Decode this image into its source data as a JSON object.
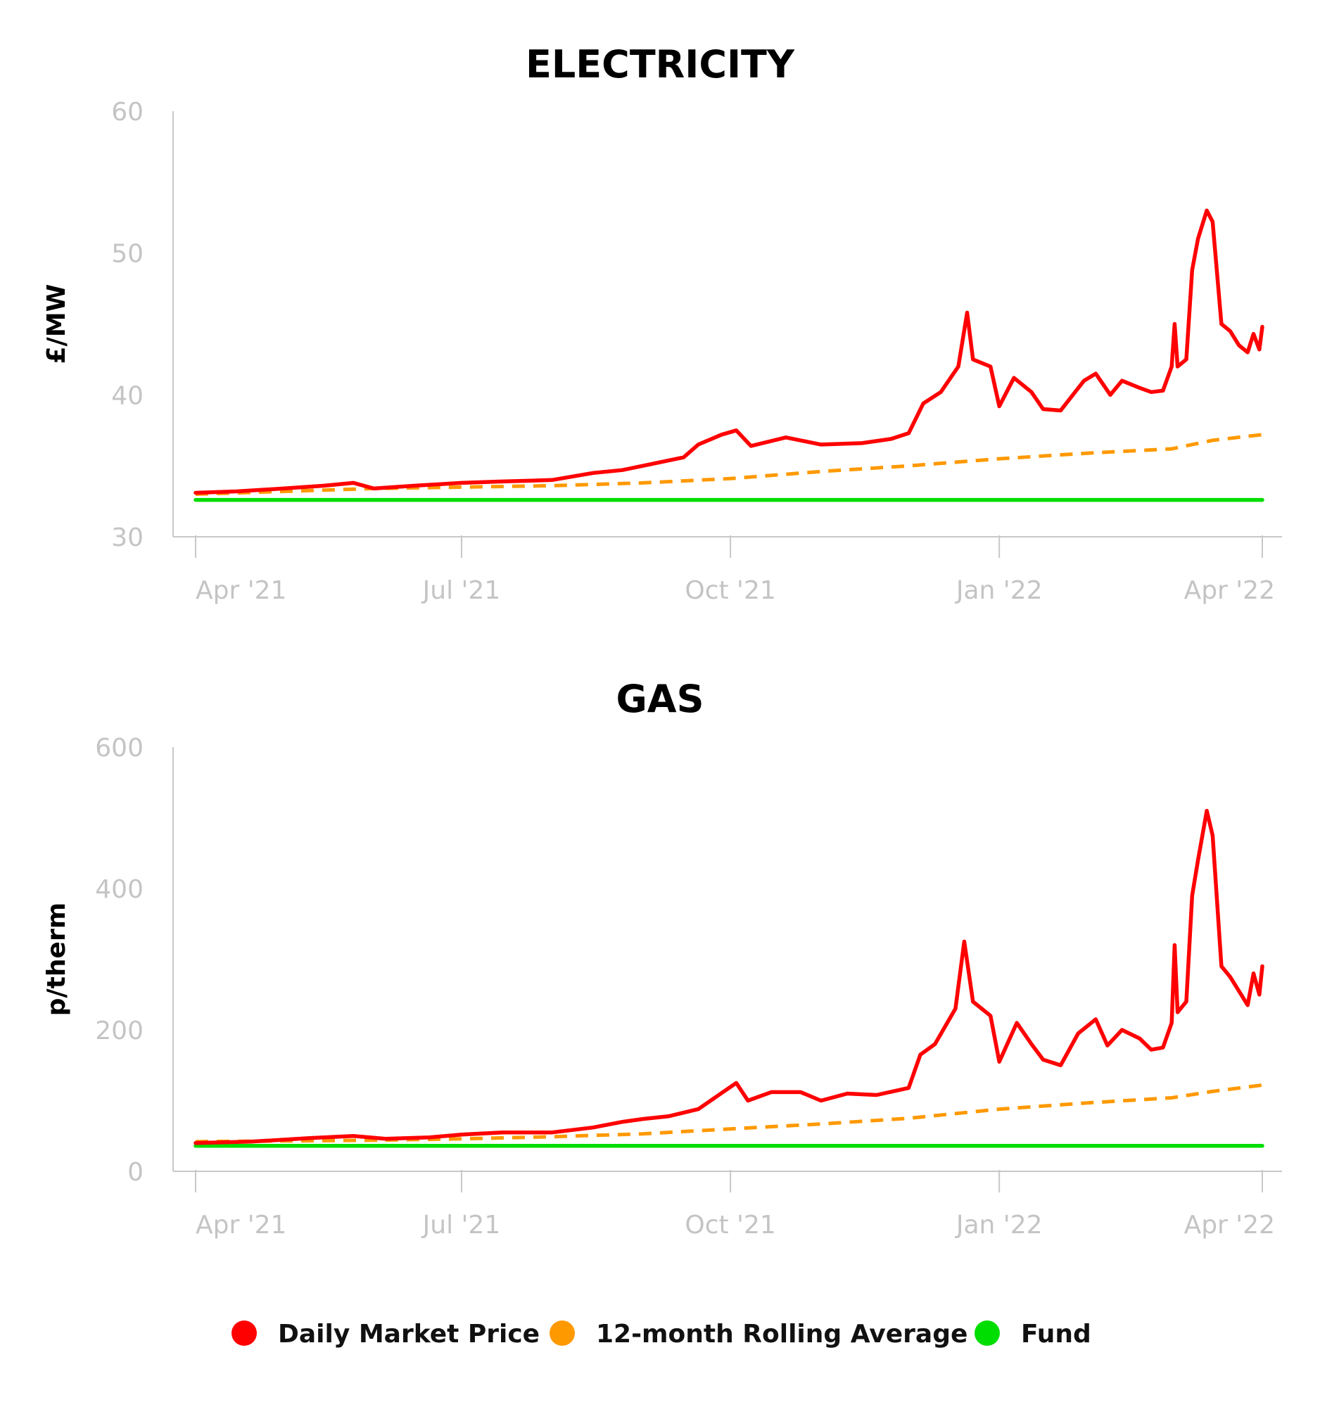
{
  "colors": {
    "daily": "#ff0000",
    "rolling": "#ff9900",
    "fund": "#00dd00"
  },
  "legend": [
    {
      "key": "daily",
      "label": "Daily Market Price",
      "color": "#ff0000"
    },
    {
      "key": "rolling",
      "label": "12-month Rolling Average",
      "color": "#ff9900"
    },
    {
      "key": "fund",
      "label": "Fund",
      "color": "#00dd00"
    }
  ],
  "chart_data": [
    {
      "type": "line",
      "title": "ELECTRICITY",
      "ylabel": "£/MW",
      "xlabel": "",
      "ylim": [
        30,
        60
      ],
      "yticks": [
        30,
        40,
        50,
        60
      ],
      "xlim": [
        "2021-03-29",
        "2022-04-01"
      ],
      "xticks": [
        {
          "date": "2021-04-01",
          "label": "Apr '21"
        },
        {
          "date": "2021-07-01",
          "label": "Jul '21"
        },
        {
          "date": "2021-10-01",
          "label": "Oct '21"
        },
        {
          "date": "2022-01-01",
          "label": "Jan '22"
        },
        {
          "date": "2022-04-01",
          "label": "Apr '22"
        }
      ],
      "grid": false,
      "legend_position": "bottom",
      "series": [
        {
          "name": "Daily Market Price",
          "key": "daily",
          "style": "solid",
          "points": [
            [
              "2021-04-01",
              33.1
            ],
            [
              "2021-04-15",
              33.2
            ],
            [
              "2021-05-01",
              33.4
            ],
            [
              "2021-05-15",
              33.6
            ],
            [
              "2021-05-25",
              33.8
            ],
            [
              "2021-06-01",
              33.4
            ],
            [
              "2021-06-15",
              33.6
            ],
            [
              "2021-07-01",
              33.8
            ],
            [
              "2021-07-15",
              33.9
            ],
            [
              "2021-08-01",
              34.0
            ],
            [
              "2021-08-15",
              34.5
            ],
            [
              "2021-08-25",
              34.7
            ],
            [
              "2021-09-01",
              35.0
            ],
            [
              "2021-09-15",
              35.6
            ],
            [
              "2021-09-20",
              36.5
            ],
            [
              "2021-09-28",
              37.2
            ],
            [
              "2021-10-03",
              37.5
            ],
            [
              "2021-10-08",
              36.4
            ],
            [
              "2021-10-20",
              37.0
            ],
            [
              "2021-11-01",
              36.5
            ],
            [
              "2021-11-15",
              36.6
            ],
            [
              "2021-11-25",
              36.9
            ],
            [
              "2021-12-01",
              37.3
            ],
            [
              "2021-12-06",
              39.4
            ],
            [
              "2021-12-12",
              40.2
            ],
            [
              "2021-12-18",
              42.0
            ],
            [
              "2021-12-21",
              45.8
            ],
            [
              "2021-12-23",
              42.5
            ],
            [
              "2021-12-29",
              42.0
            ],
            [
              "2022-01-01",
              39.2
            ],
            [
              "2022-01-06",
              41.2
            ],
            [
              "2022-01-12",
              40.2
            ],
            [
              "2022-01-16",
              39.0
            ],
            [
              "2022-01-22",
              38.9
            ],
            [
              "2022-01-30",
              41.0
            ],
            [
              "2022-02-03",
              41.5
            ],
            [
              "2022-02-08",
              40.0
            ],
            [
              "2022-02-12",
              41.0
            ],
            [
              "2022-02-18",
              40.5
            ],
            [
              "2022-02-22",
              40.2
            ],
            [
              "2022-02-26",
              40.3
            ],
            [
              "2022-03-01",
              42.0
            ],
            [
              "2022-03-02",
              45.0
            ],
            [
              "2022-03-03",
              42.0
            ],
            [
              "2022-03-06",
              42.5
            ],
            [
              "2022-03-08",
              48.8
            ],
            [
              "2022-03-10",
              51.0
            ],
            [
              "2022-03-13",
              53.0
            ],
            [
              "2022-03-15",
              52.2
            ],
            [
              "2022-03-18",
              45.0
            ],
            [
              "2022-03-21",
              44.5
            ],
            [
              "2022-03-24",
              43.5
            ],
            [
              "2022-03-27",
              43.0
            ],
            [
              "2022-03-29",
              44.3
            ],
            [
              "2022-03-31",
              43.2
            ],
            [
              "2022-04-01",
              44.8
            ]
          ]
        },
        {
          "name": "12-month Rolling Average",
          "key": "rolling",
          "style": "dashed",
          "points": [
            [
              "2021-04-01",
              33.0
            ],
            [
              "2021-05-01",
              33.2
            ],
            [
              "2021-06-01",
              33.4
            ],
            [
              "2021-07-01",
              33.5
            ],
            [
              "2021-08-01",
              33.6
            ],
            [
              "2021-09-01",
              33.8
            ],
            [
              "2021-10-01",
              34.1
            ],
            [
              "2021-11-01",
              34.6
            ],
            [
              "2021-12-01",
              35.0
            ],
            [
              "2022-01-01",
              35.5
            ],
            [
              "2022-02-01",
              35.9
            ],
            [
              "2022-03-01",
              36.2
            ],
            [
              "2022-03-15",
              36.8
            ],
            [
              "2022-04-01",
              37.2
            ]
          ]
        },
        {
          "name": "Fund",
          "key": "fund",
          "style": "solid",
          "points": [
            [
              "2021-04-01",
              32.6
            ],
            [
              "2022-04-01",
              32.6
            ]
          ]
        }
      ]
    },
    {
      "type": "line",
      "title": "GAS",
      "ylabel": "p/therm",
      "xlabel": "",
      "ylim": [
        0,
        600
      ],
      "yticks": [
        0,
        200,
        400,
        600
      ],
      "xlim": [
        "2021-03-29",
        "2022-04-01"
      ],
      "xticks": [
        {
          "date": "2021-04-01",
          "label": "Apr '21"
        },
        {
          "date": "2021-07-01",
          "label": "Jul '21"
        },
        {
          "date": "2021-10-01",
          "label": "Oct '21"
        },
        {
          "date": "2022-01-01",
          "label": "Jan '22"
        },
        {
          "date": "2022-04-01",
          "label": "Apr '22"
        }
      ],
      "grid": false,
      "legend_position": "bottom",
      "series": [
        {
          "name": "Daily Market Price",
          "key": "daily",
          "style": "solid",
          "points": [
            [
              "2021-04-01",
              40
            ],
            [
              "2021-04-20",
              42
            ],
            [
              "2021-05-10",
              47
            ],
            [
              "2021-05-25",
              50
            ],
            [
              "2021-06-05",
              46
            ],
            [
              "2021-06-20",
              48
            ],
            [
              "2021-07-01",
              52
            ],
            [
              "2021-07-15",
              55
            ],
            [
              "2021-08-01",
              55
            ],
            [
              "2021-08-15",
              62
            ],
            [
              "2021-08-25",
              70
            ],
            [
              "2021-09-01",
              74
            ],
            [
              "2021-09-10",
              78
            ],
            [
              "2021-09-20",
              88
            ],
            [
              "2021-09-27",
              108
            ],
            [
              "2021-10-03",
              125
            ],
            [
              "2021-10-07",
              100
            ],
            [
              "2021-10-15",
              112
            ],
            [
              "2021-10-25",
              112
            ],
            [
              "2021-11-01",
              100
            ],
            [
              "2021-11-10",
              110
            ],
            [
              "2021-11-20",
              108
            ],
            [
              "2021-12-01",
              118
            ],
            [
              "2021-12-05",
              165
            ],
            [
              "2021-12-10",
              180
            ],
            [
              "2021-12-17",
              230
            ],
            [
              "2021-12-20",
              325
            ],
            [
              "2021-12-23",
              240
            ],
            [
              "2021-12-29",
              220
            ],
            [
              "2022-01-01",
              155
            ],
            [
              "2022-01-07",
              210
            ],
            [
              "2022-01-12",
              180
            ],
            [
              "2022-01-16",
              158
            ],
            [
              "2022-01-22",
              150
            ],
            [
              "2022-01-28",
              195
            ],
            [
              "2022-02-03",
              215
            ],
            [
              "2022-02-07",
              178
            ],
            [
              "2022-02-12",
              200
            ],
            [
              "2022-02-18",
              188
            ],
            [
              "2022-02-22",
              172
            ],
            [
              "2022-02-26",
              175
            ],
            [
              "2022-03-01",
              210
            ],
            [
              "2022-03-02",
              320
            ],
            [
              "2022-03-03",
              225
            ],
            [
              "2022-03-06",
              240
            ],
            [
              "2022-03-08",
              390
            ],
            [
              "2022-03-10",
              440
            ],
            [
              "2022-03-13",
              510
            ],
            [
              "2022-03-15",
              475
            ],
            [
              "2022-03-18",
              290
            ],
            [
              "2022-03-21",
              275
            ],
            [
              "2022-03-24",
              255
            ],
            [
              "2022-03-27",
              235
            ],
            [
              "2022-03-29",
              280
            ],
            [
              "2022-03-31",
              250
            ],
            [
              "2022-04-01",
              290
            ]
          ]
        },
        {
          "name": "12-month Rolling Average",
          "key": "rolling",
          "style": "dashed",
          "points": [
            [
              "2021-04-01",
              42
            ],
            [
              "2021-05-01",
              43
            ],
            [
              "2021-06-01",
              44
            ],
            [
              "2021-07-01",
              46
            ],
            [
              "2021-08-01",
              49
            ],
            [
              "2021-09-01",
              53
            ],
            [
              "2021-10-01",
              60
            ],
            [
              "2021-11-01",
              67
            ],
            [
              "2021-12-01",
              75
            ],
            [
              "2022-01-01",
              88
            ],
            [
              "2022-02-01",
              97
            ],
            [
              "2022-03-01",
              104
            ],
            [
              "2022-03-15",
              113
            ],
            [
              "2022-04-01",
              122
            ]
          ]
        },
        {
          "name": "Fund",
          "key": "fund",
          "style": "solid",
          "points": [
            [
              "2021-04-01",
              36
            ],
            [
              "2022-04-01",
              36
            ]
          ]
        }
      ]
    }
  ]
}
